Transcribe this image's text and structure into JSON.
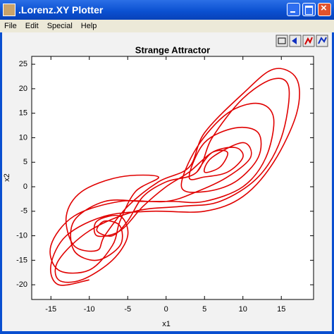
{
  "window": {
    "title": ".Lorenz.XY Plotter",
    "menu": [
      "File",
      "Edit",
      "Special",
      "Help"
    ]
  },
  "chart_data": {
    "type": "line",
    "title": "Strange Attractor",
    "x_label": "x1",
    "y_label": "x2",
    "x": [
      4,
      6,
      9,
      10,
      8,
      5,
      3,
      5,
      9,
      12,
      12,
      9,
      5,
      2,
      4,
      8,
      12,
      14,
      13,
      10,
      5,
      1,
      -3,
      -8,
      -12,
      -12,
      -9,
      -6,
      -6,
      -8,
      -9,
      -7,
      -5,
      -3,
      0,
      4,
      6,
      10,
      14,
      16,
      15,
      12,
      7,
      2,
      -4,
      -10,
      -14,
      -14,
      -11,
      -7,
      -5,
      -6,
      -9,
      -9,
      -6,
      -3,
      0,
      3,
      6,
      8,
      7,
      5,
      6,
      10,
      11,
      8,
      4,
      0,
      -6,
      -12,
      -15,
      -14,
      -10,
      -7,
      -6,
      -4,
      -1,
      -6,
      -11,
      -13,
      -12,
      -9,
      -8,
      -5,
      -1,
      3,
      5,
      10,
      14,
      17,
      17,
      14,
      10,
      5,
      -2,
      -8,
      -13,
      -15,
      -14,
      -10
    ],
    "series": [
      {
        "color": "#e00000",
        "values": [
          3,
          7,
          8,
          6,
          3,
          2,
          2,
          9,
          12,
          11,
          6,
          1,
          -1,
          0,
          8,
          15,
          17,
          14,
          6,
          0,
          -3,
          -3,
          -3,
          -3,
          -7,
          -13,
          -15,
          -12,
          -8,
          -7,
          -9,
          -10,
          -7,
          -2,
          1,
          3,
          10,
          18,
          22,
          20,
          10,
          2,
          -3,
          -4,
          -5,
          -9,
          -15,
          -19,
          -19,
          -15,
          -10,
          -6,
          -7,
          -10,
          -9,
          -4,
          0,
          3,
          7,
          7,
          4,
          3,
          6,
          9,
          6,
          2,
          -1,
          -3,
          -3,
          -6,
          -12,
          -17,
          -17,
          -12,
          -7,
          -1,
          2,
          2,
          -1,
          -6,
          -12,
          -13,
          -10,
          -4,
          1,
          4,
          11,
          19,
          24,
          22,
          15,
          5,
          -2,
          -5,
          -5,
          -6,
          -10,
          -16,
          -20,
          -19
        ]
      }
    ],
    "xlim": [
      -17.5,
      19.2
    ],
    "ylim": [
      -23,
      26.6
    ],
    "xticks": [
      -15,
      -10,
      -5,
      0,
      5,
      10,
      15
    ],
    "yticks": [
      -20,
      -15,
      -10,
      -5,
      0,
      5,
      10,
      15,
      20,
      25
    ],
    "grid": false
  }
}
